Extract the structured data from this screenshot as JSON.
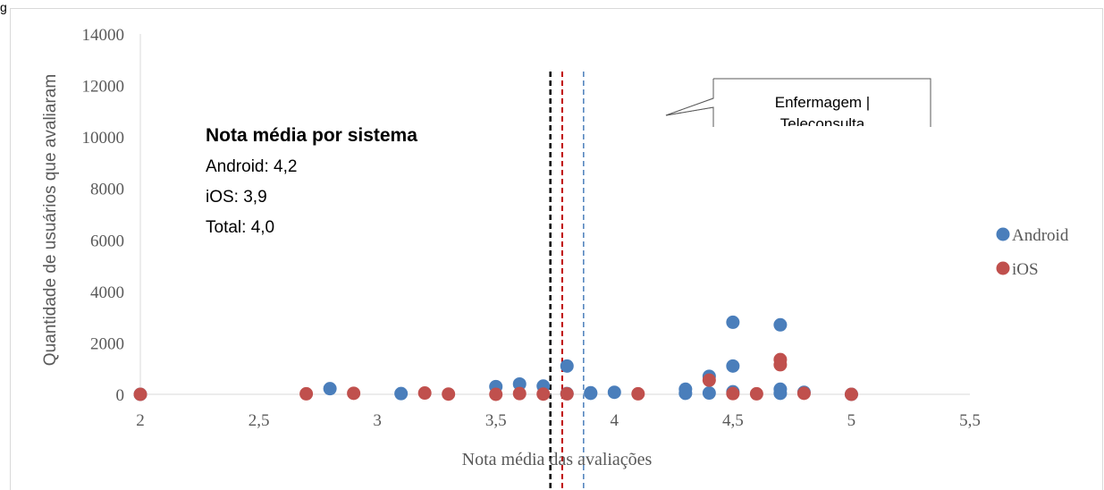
{
  "corner_label": "g",
  "chart_data": {
    "type": "scatter",
    "xlabel": "Nota média das avaliações",
    "ylabel": "Quantidade de usuários que avaliaram",
    "xlim": [
      2,
      5.5
    ],
    "ylim": [
      0,
      14000
    ],
    "xticks": [
      2,
      2.5,
      3,
      3.5,
      4,
      4.5,
      5,
      5.5
    ],
    "xtick_labels": [
      "2",
      "2,5",
      "3",
      "3,5",
      "4",
      "4,5",
      "5",
      "5,5"
    ],
    "yticks": [
      0,
      2000,
      4000,
      6000,
      8000,
      10000,
      12000,
      14000
    ],
    "ytick_labels": [
      "0",
      "2000",
      "4000",
      "6000",
      "8000",
      "10000",
      "12000",
      "14000"
    ],
    "grid": false,
    "legend_position": "right",
    "series": [
      {
        "name": "Android",
        "color": "#4A7EBB",
        "points": [
          {
            "x": 2.0,
            "y": 0
          },
          {
            "x": 2.8,
            "y": 220
          },
          {
            "x": 3.1,
            "y": 30
          },
          {
            "x": 3.5,
            "y": 300
          },
          {
            "x": 3.6,
            "y": 400
          },
          {
            "x": 3.7,
            "y": 320
          },
          {
            "x": 3.8,
            "y": 1100
          },
          {
            "x": 3.8,
            "y": 30
          },
          {
            "x": 3.9,
            "y": 60
          },
          {
            "x": 3.9,
            "y": 40
          },
          {
            "x": 4.0,
            "y": 80
          },
          {
            "x": 4.3,
            "y": 200
          },
          {
            "x": 4.3,
            "y": 40
          },
          {
            "x": 4.4,
            "y": 700
          },
          {
            "x": 4.4,
            "y": 50
          },
          {
            "x": 4.5,
            "y": 2800
          },
          {
            "x": 4.5,
            "y": 1100
          },
          {
            "x": 4.5,
            "y": 100
          },
          {
            "x": 4.7,
            "y": 2700
          },
          {
            "x": 4.7,
            "y": 200
          },
          {
            "x": 4.7,
            "y": 40
          },
          {
            "x": 4.8,
            "y": 80
          },
          {
            "x": 5.0,
            "y": 0
          }
        ]
      },
      {
        "name": "iOS",
        "color": "#C0504D",
        "points": [
          {
            "x": 2.0,
            "y": 0
          },
          {
            "x": 2.7,
            "y": 20
          },
          {
            "x": 2.9,
            "y": 40
          },
          {
            "x": 3.2,
            "y": 50
          },
          {
            "x": 3.3,
            "y": 10
          },
          {
            "x": 3.5,
            "y": 0
          },
          {
            "x": 3.6,
            "y": 30
          },
          {
            "x": 3.7,
            "y": 10
          },
          {
            "x": 3.8,
            "y": 20
          },
          {
            "x": 4.1,
            "y": 20
          },
          {
            "x": 4.4,
            "y": 550
          },
          {
            "x": 4.5,
            "y": 30
          },
          {
            "x": 4.6,
            "y": 20
          },
          {
            "x": 4.7,
            "y": 1350
          },
          {
            "x": 4.7,
            "y": 1150
          },
          {
            "x": 4.8,
            "y": 40
          },
          {
            "x": 5.0,
            "y": 0
          }
        ]
      }
    ],
    "mean_lines": [
      {
        "x": 3.73,
        "color": "#000000"
      },
      {
        "x": 3.78,
        "color": "#C00000"
      },
      {
        "x": 3.87,
        "color": "#4A7EBB"
      }
    ],
    "annotation": {
      "title": "Nota média por sistema",
      "lines": [
        "Android: 4,2",
        "iOS: 3,9",
        "Total: 4,0"
      ]
    },
    "callout": {
      "text": "Enfermagem |",
      "cut_text": "Teleconsulta",
      "points_to": {
        "x": 4.5,
        "y": 11500
      }
    }
  }
}
